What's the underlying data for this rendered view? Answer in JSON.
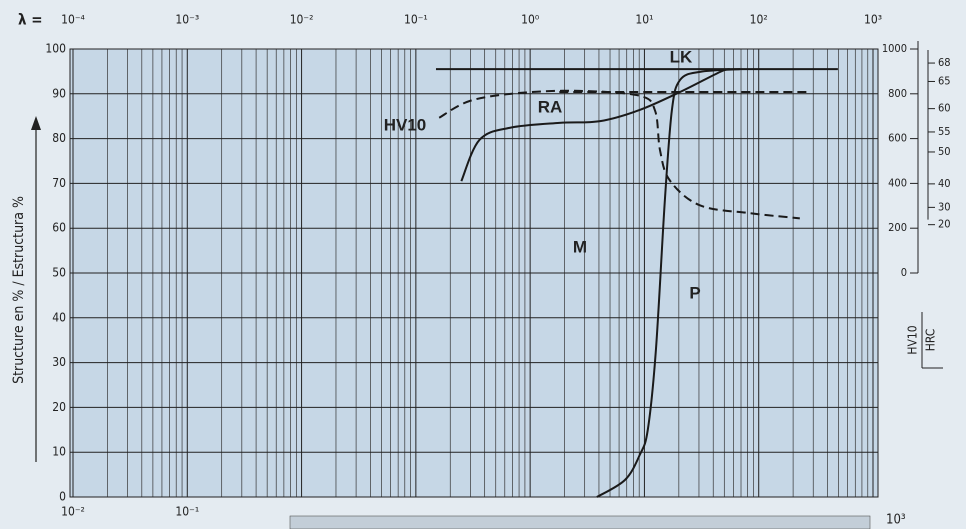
{
  "chart_data": {
    "type": "line",
    "x_label": "λ =",
    "y_label": "Structure en % / Estructura %",
    "y2_labels": [
      "HV10",
      "HRC"
    ],
    "xscale": "log",
    "xlim": [
      0.0001,
      1000
    ],
    "xticks": [
      {
        "value": 0.0001,
        "label": "10⁻⁴"
      },
      {
        "value": 0.001,
        "label": "10⁻³"
      },
      {
        "value": 0.01,
        "label": "10⁻²"
      },
      {
        "value": 0.1,
        "label": "10⁻¹"
      },
      {
        "value": 1,
        "label": "10⁰"
      },
      {
        "value": 10,
        "label": "10¹"
      },
      {
        "value": 100,
        "label": "10²"
      },
      {
        "value": 1000,
        "label": "10³"
      }
    ],
    "x2lim": [
      0.01,
      100000
    ],
    "x2ticks": [
      {
        "value": 0.01,
        "label": "10⁻²"
      },
      {
        "value": 0.1,
        "label": "10⁻¹"
      }
    ],
    "ylim": [
      0,
      100
    ],
    "yticks": [
      0,
      10,
      20,
      30,
      40,
      50,
      60,
      70,
      80,
      90,
      100
    ],
    "y2lim": [
      -1000,
      1000
    ],
    "y2ticks": [
      0,
      200,
      400,
      600,
      800,
      1000
    ],
    "hrc_ticks": [
      20,
      30,
      40,
      50,
      55,
      60,
      65,
      68
    ],
    "grid": true,
    "corner_label": "10³",
    "annotations": [
      "LK",
      "RA",
      "HV10",
      "M",
      "P"
    ],
    "series": [
      {
        "color": "#1a1a1a",
        "dash": false,
        "x": [
          0.15,
          493
        ],
        "values": [
          95.5,
          95.5
        ]
      },
      {
        "color": "#1a1a1a",
        "dash": false,
        "x": [
          0.25,
          0.36,
          0.66,
          1.8,
          4.1,
          9.1,
          20.5,
          46,
          56
        ],
        "values": [
          70.5,
          79.7,
          82.4,
          83.5,
          83.9,
          86.4,
          90.4,
          94.9,
          95.5
        ]
      },
      {
        "color": "#1a1a1a",
        "dash": true,
        "axis": "y2",
        "x": [
          0.16,
          0.3,
          0.82,
          2.7,
          9.1,
          12.4,
          13.7,
          16.7,
          30.6,
          84,
          229
        ],
        "values": [
          693,
          769,
          804,
          813,
          791,
          724,
          547,
          413,
          302,
          267,
          244
        ]
      },
      {
        "color": "#1a1a1a",
        "dash": true,
        "x": [
          1.8,
          281
        ],
        "values": [
          90.4,
          90.4
        ]
      },
      {
        "color": "#1a1a1a",
        "dash": false,
        "x": [
          3.84,
          6.75,
          9.1,
          10.7,
          12.6,
          15.1,
          17.4,
          20.5,
          30.6,
          68.5
        ],
        "values": [
          0,
          3.8,
          9.4,
          15,
          32.8,
          66.3,
          86.4,
          93.1,
          94.9,
          95.5
        ]
      }
    ]
  }
}
